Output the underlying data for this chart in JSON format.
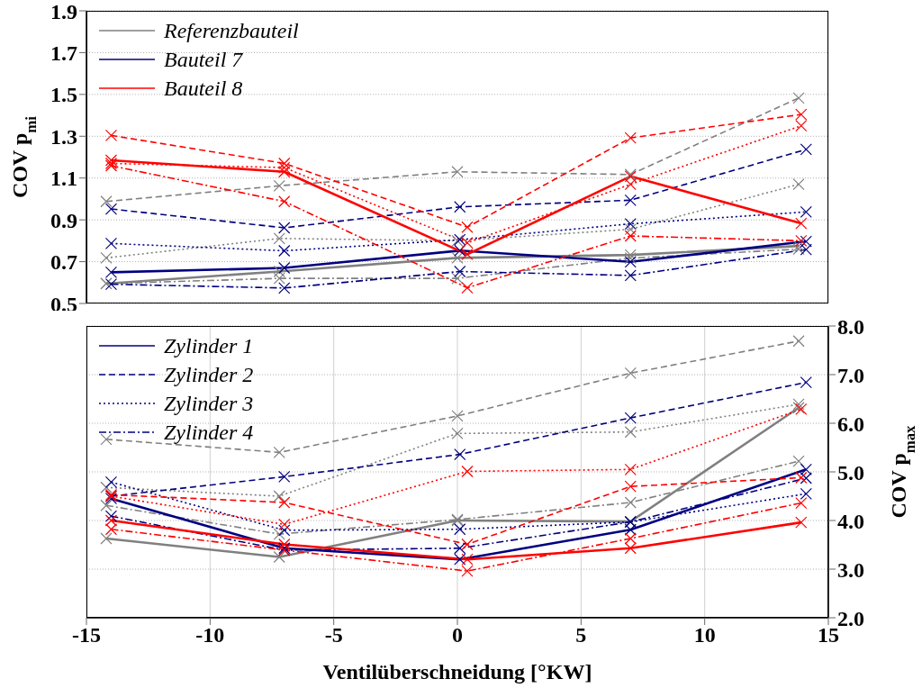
{
  "chart_data": [
    {
      "type": "line",
      "ylabel": "COV p$_{mi}$",
      "xlim": [
        -15,
        15
      ],
      "xticks": [
        -15,
        -10,
        -5,
        0,
        5,
        10,
        15
      ],
      "ylim": [
        0.5,
        1.9
      ],
      "yticks": [
        0.5,
        0.7,
        0.9,
        1.1,
        1.3,
        1.5,
        1.7,
        1.9
      ],
      "tick_labels": "y",
      "grid": true,
      "legend": "top left",
      "marker": "cross",
      "series": [
        {
          "name": "Referenzbauteil",
          "color": "#808080",
          "line_style": "solid",
          "x": [
            -14.2,
            -7.2,
            0,
            7,
            13.8
          ],
          "values": [
            0.595,
            0.653,
            0.718,
            0.732,
            0.775
          ]
        },
        {
          "color": "#808080",
          "line_style": "dashed",
          "x": [
            -14.2,
            -7.2,
            0,
            7,
            13.8
          ],
          "values": [
            0.988,
            1.063,
            1.13,
            1.117,
            1.483
          ]
        },
        {
          "color": "#808080",
          "line_style": "dotted",
          "x": [
            -14.2,
            -7.2,
            0,
            7,
            13.8
          ],
          "values": [
            0.718,
            0.811,
            0.8,
            0.855,
            1.07
          ]
        },
        {
          "color": "#808080",
          "line_style": "dashdot",
          "x": [
            -14.2,
            -7.2,
            0,
            7,
            13.8
          ],
          "values": [
            0.595,
            0.62,
            0.62,
            0.717,
            0.76
          ]
        },
        {
          "name": "Bauteil 7",
          "color": "#000080",
          "line_style": "solid",
          "x": [
            -14,
            -7,
            0.1,
            7,
            14.1
          ],
          "values": [
            0.649,
            0.67,
            0.753,
            0.699,
            0.797
          ]
        },
        {
          "color": "#000080",
          "line_style": "dashed",
          "x": [
            -14,
            -7,
            0.1,
            7,
            14.1
          ],
          "values": [
            0.952,
            0.862,
            0.962,
            0.994,
            1.237
          ]
        },
        {
          "color": "#000080",
          "line_style": "dotted",
          "x": [
            -14,
            -7,
            0.1,
            7,
            14.1
          ],
          "values": [
            0.787,
            0.752,
            0.805,
            0.881,
            0.938
          ]
        },
        {
          "color": "#000080",
          "line_style": "dashdot",
          "x": [
            -14,
            -7,
            0.1,
            7,
            14.1
          ],
          "values": [
            0.592,
            0.574,
            0.653,
            0.634,
            0.758
          ]
        },
        {
          "name": "Bauteil 8",
          "color": "#ff0000",
          "line_style": "solid",
          "x": [
            -14,
            -7,
            0.4,
            7,
            13.9
          ],
          "values": [
            1.185,
            1.13,
            0.735,
            1.108,
            0.883
          ]
        },
        {
          "color": "#ff0000",
          "line_style": "dashed",
          "x": [
            -14,
            -7,
            0.4,
            7,
            13.9
          ],
          "values": [
            1.304,
            1.17,
            0.865,
            1.292,
            1.404
          ]
        },
        {
          "color": "#ff0000",
          "line_style": "dotted",
          "x": [
            -14,
            -7,
            0.4,
            7,
            13.9
          ],
          "values": [
            1.17,
            1.15,
            0.79,
            1.07,
            1.35
          ]
        },
        {
          "color": "#ff0000",
          "line_style": "dashdot",
          "x": [
            -14,
            -7,
            0.4,
            7,
            13.9
          ],
          "values": [
            1.159,
            0.988,
            0.575,
            0.823,
            0.8
          ]
        }
      ]
    },
    {
      "type": "line",
      "xlabel": "Ventilüberschneidung [°KW]",
      "y2label": "COV p$_{max}$",
      "xlim": [
        -15,
        15
      ],
      "xticks": [
        -15,
        -10,
        -5,
        0,
        5,
        10,
        15
      ],
      "y2lim": [
        2,
        8
      ],
      "y2ticks": [
        {
          "value": 2,
          "label": "2.0"
        },
        {
          "value": 3,
          "label": "3.0"
        },
        {
          "value": 4,
          "label": "4.0"
        },
        {
          "value": 5,
          "label": "5.0"
        },
        {
          "value": 6,
          "label": "6.0"
        },
        {
          "value": 7,
          "label": "7.0"
        },
        {
          "value": 8,
          "label": "8.0"
        }
      ],
      "grid": true,
      "legend": "top left",
      "marker": "cross",
      "series": [
        {
          "axis": "y2",
          "color": "#808080",
          "line_style": "solid",
          "x": [
            -14.2,
            -7.2,
            0,
            7,
            13.8
          ],
          "values": [
            3.63,
            3.25,
            4.0,
            3.98,
            6.32
          ]
        },
        {
          "axis": "y2",
          "color": "#808080",
          "line_style": "dashed",
          "x": [
            -14.2,
            -7.2,
            0,
            7,
            13.8
          ],
          "values": [
            5.67,
            5.4,
            6.15,
            7.03,
            7.69
          ]
        },
        {
          "axis": "y2",
          "color": "#808080",
          "line_style": "dotted",
          "x": [
            -14.2,
            -7.2,
            0,
            7,
            13.8
          ],
          "values": [
            4.68,
            4.5,
            5.79,
            5.82,
            6.39
          ]
        },
        {
          "axis": "y2",
          "color": "#808080",
          "line_style": "dashdot",
          "x": [
            -14.2,
            -7.2,
            0,
            7,
            13.8
          ],
          "values": [
            4.31,
            3.72,
            4.02,
            4.37,
            5.22
          ]
        },
        {
          "axis": "y2",
          "name": "Zylinder 1",
          "color": "#000080",
          "line_style": "solid",
          "x": [
            -14,
            -7,
            0.1,
            7,
            14.1
          ],
          "values": [
            4.45,
            3.43,
            3.2,
            3.81,
            5.05
          ]
        },
        {
          "axis": "y2",
          "name": "Zylinder 2",
          "color": "#000080",
          "line_style": "dashed",
          "x": [
            -14,
            -7,
            0.1,
            7,
            14.1
          ],
          "values": [
            4.5,
            4.9,
            5.36,
            6.11,
            6.84
          ]
        },
        {
          "axis": "y2",
          "name": "Zylinder 3",
          "color": "#000080",
          "line_style": "dotted",
          "x": [
            -14,
            -7,
            0.1,
            7,
            14.1
          ],
          "values": [
            4.79,
            3.8,
            3.82,
            3.97,
            4.55
          ]
        },
        {
          "axis": "y2",
          "name": "Zylinder 4",
          "color": "#000080",
          "line_style": "dashdot",
          "x": [
            -14,
            -7,
            0.1,
            7,
            14.1
          ],
          "values": [
            4.09,
            3.39,
            3.43,
            3.97,
            4.87
          ]
        },
        {
          "axis": "y2",
          "color": "#ff0000",
          "line_style": "solid",
          "x": [
            -14,
            -7,
            0.4,
            7,
            13.9
          ],
          "values": [
            4.0,
            3.51,
            3.2,
            3.43,
            3.96
          ]
        },
        {
          "axis": "y2",
          "color": "#ff0000",
          "line_style": "dashed",
          "x": [
            -14,
            -7,
            0.4,
            7,
            13.9
          ],
          "values": [
            4.53,
            4.37,
            3.51,
            4.7,
            4.88
          ]
        },
        {
          "axis": "y2",
          "color": "#ff0000",
          "line_style": "dotted",
          "x": [
            -14,
            -7,
            0.4,
            7,
            13.9
          ],
          "values": [
            4.5,
            3.92,
            5.01,
            5.05,
            6.29
          ]
        },
        {
          "axis": "y2",
          "color": "#ff0000",
          "line_style": "dashdot",
          "x": [
            -14,
            -7,
            0.4,
            7,
            13.9
          ],
          "values": [
            3.82,
            3.39,
            2.96,
            3.63,
            4.36
          ]
        }
      ]
    }
  ]
}
